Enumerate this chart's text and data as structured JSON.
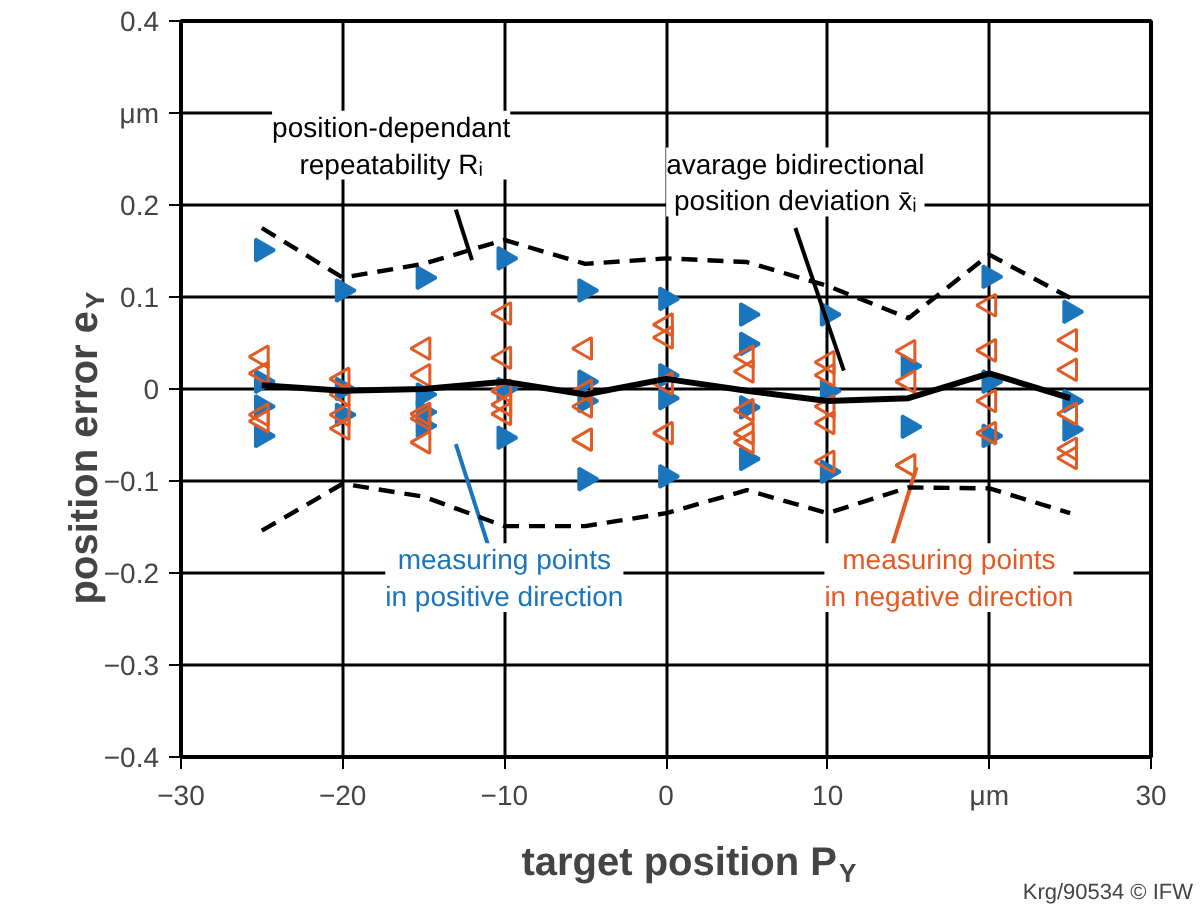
{
  "chart_data": {
    "type": "scatter",
    "xlabel": "target position P$_{Y}$",
    "ylabel": "position error e$_{Y}$",
    "xlim": [
      -30,
      30
    ],
    "ylim": [
      -0.4,
      0.4
    ],
    "xticks": [
      -30,
      -20,
      -10,
      0,
      10,
      {
        "value": 20,
        "label": "μm"
      },
      30
    ],
    "yticks": [
      -0.4,
      -0.3,
      -0.2,
      -0.1,
      0,
      0.1,
      0.2,
      {
        "value": 0.3,
        "label": "μm"
      },
      0.4
    ],
    "grid": true,
    "legend": false,
    "series": [
      {
        "name": "measuring points\nin positive direction",
        "type": "scatter",
        "marker": "triangle",
        "color": "#1b75bc",
        "x": [
          -25,
          -25,
          -25,
          -25,
          -20,
          -20,
          -20,
          -15,
          -15,
          -15,
          -15,
          -10,
          -10,
          -10,
          -5,
          -5,
          -5,
          -5,
          0,
          0,
          0,
          0,
          5,
          5,
          5,
          5,
          10,
          10,
          10,
          15,
          15,
          20,
          20,
          20,
          25,
          25,
          25
        ],
        "values": [
          0.151,
          0.008,
          -0.019,
          -0.051,
          0.107,
          0,
          -0.028,
          0.121,
          -0.006,
          -0.025,
          -0.04,
          0.142,
          0,
          -0.053,
          0.107,
          0.008,
          -0.013,
          -0.098,
          0.098,
          0.015,
          -0.01,
          -0.095,
          0.081,
          0.049,
          -0.02,
          -0.076,
          0.081,
          -0.002,
          -0.09,
          0.025,
          -0.041,
          0.122,
          0.008,
          -0.051,
          0.084,
          -0.013,
          -0.044
        ]
      },
      {
        "name": "measuring points\nin negative direction",
        "type": "scatter",
        "marker": "triangle",
        "color": "#e35b24",
        "x": [
          -25,
          -25,
          -25,
          -25,
          -20,
          -20,
          -20,
          -20,
          -15,
          -15,
          -15,
          -15,
          -15,
          -10,
          -10,
          -10,
          -10,
          -10,
          -5,
          -5,
          -5,
          -5,
          0,
          0,
          0,
          0,
          5,
          5,
          5,
          5,
          5,
          10,
          10,
          10,
          10,
          10,
          15,
          15,
          15,
          20,
          20,
          20,
          20,
          25,
          25,
          25,
          25,
          25
        ],
        "values": [
          0.035,
          0.017,
          -0.028,
          -0.035,
          0.011,
          -0.006,
          -0.028,
          -0.043,
          0.044,
          0.015,
          -0.027,
          -0.032,
          -0.058,
          0.082,
          0.034,
          -0.002,
          -0.017,
          -0.027,
          0.044,
          -0.002,
          -0.019,
          -0.055,
          0.07,
          0.056,
          0.006,
          -0.048,
          0.035,
          0.019,
          -0.023,
          -0.048,
          -0.058,
          0.029,
          0.015,
          -0.019,
          -0.037,
          -0.079,
          0.041,
          0.008,
          -0.083,
          0.091,
          0.042,
          -0.013,
          -0.048,
          0.053,
          0.021,
          -0.027,
          -0.065,
          -0.075
        ]
      },
      {
        "name": "avarage bidirectional\nposition deviation x̄ᵢ",
        "type": "line",
        "line_style": "solid",
        "color": "#000000",
        "x": [
          -25,
          -20,
          -15,
          -10,
          -5,
          0,
          5,
          10,
          15,
          20,
          25
        ],
        "values": [
          0.004,
          -0.002,
          0,
          0.008,
          -0.006,
          0.011,
          -0.002,
          -0.013,
          -0.01,
          0.017,
          -0.01
        ]
      },
      {
        "name": "position-dependant\nrepeatability Rᵢ",
        "type": "line",
        "line_style": "dashed",
        "color": "#000000",
        "x": [
          -25,
          -20,
          -15,
          -10,
          -5,
          0,
          5,
          10,
          15,
          20,
          25
        ],
        "values": [
          0.175,
          0.121,
          0.136,
          0.162,
          0.136,
          0.142,
          0.138,
          0.112,
          0.077,
          0.146,
          0.099
        ]
      },
      {
        "type": "line",
        "line_style": "dashed",
        "color": "#000000",
        "x": [
          -25,
          -20,
          -15,
          -10,
          -5,
          0,
          5,
          10,
          15,
          20,
          25
        ],
        "values": [
          -0.154,
          -0.103,
          -0.117,
          -0.149,
          -0.149,
          -0.135,
          -0.11,
          -0.135,
          -0.107,
          -0.108,
          -0.135
        ]
      }
    ],
    "annotations": [
      "Krg/90534 © IFW"
    ]
  }
}
